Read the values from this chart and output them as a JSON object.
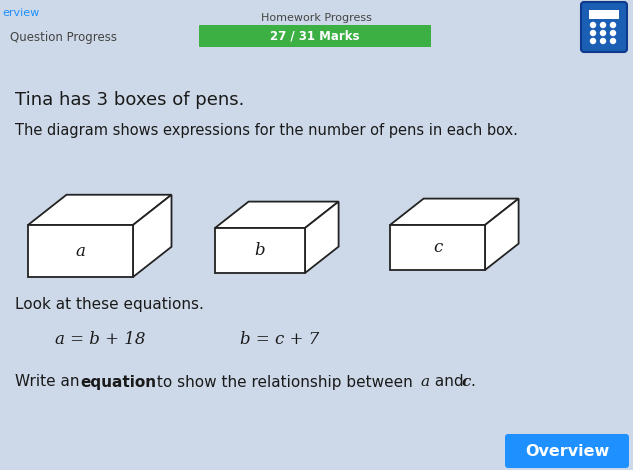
{
  "bg_color": "#cdd9e8",
  "title_text": "Tina has 3 boxes of pens.",
  "subtitle_text": "The diagram shows expressions for the number of pens in each box.",
  "header_left": "Question Progress",
  "header_center": "Homework Progress",
  "header_progress": "27 / 31 Marks",
  "progress_bar_color": "#3cb043",
  "look_text": "Look at these equations.",
  "eq1": "a = b + 18",
  "eq2": "b = c + 7",
  "box_labels": [
    "a",
    "b",
    "c"
  ],
  "overview_btn_color": "#1e90ff",
  "overview_btn_text": "Overview",
  "header_text_color": "#444444",
  "body_text_color": "#1a1a1a",
  "line_color": "#222222",
  "calc_color": "#1a5fb4",
  "erview_color": "#1e90ff"
}
